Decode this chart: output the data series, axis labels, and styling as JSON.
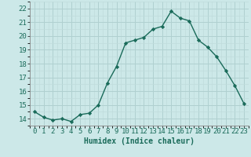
{
  "x": [
    0,
    1,
    2,
    3,
    4,
    5,
    6,
    7,
    8,
    9,
    10,
    11,
    12,
    13,
    14,
    15,
    16,
    17,
    18,
    19,
    20,
    21,
    22,
    23
  ],
  "y": [
    14.5,
    14.1,
    13.9,
    14.0,
    13.8,
    14.3,
    14.4,
    15.0,
    16.6,
    17.8,
    19.5,
    19.7,
    19.9,
    20.5,
    20.7,
    21.8,
    21.3,
    21.1,
    19.7,
    19.2,
    18.5,
    17.5,
    16.4,
    15.1
  ],
  "xlabel": "Humidex (Indice chaleur)",
  "bg_color": "#cce8e8",
  "grid_major_color": "#b0d0d0",
  "grid_minor_color": "#c0dcdc",
  "line_color": "#1a6b5a",
  "marker_color": "#1a6b5a",
  "ylim": [
    13.5,
    22.5
  ],
  "xlim": [
    -0.5,
    23.5
  ],
  "yticks": [
    14,
    15,
    16,
    17,
    18,
    19,
    20,
    21,
    22
  ],
  "xticks": [
    0,
    1,
    2,
    3,
    4,
    5,
    6,
    7,
    8,
    9,
    10,
    11,
    12,
    13,
    14,
    15,
    16,
    17,
    18,
    19,
    20,
    21,
    22,
    23
  ],
  "xlabel_fontsize": 7,
  "tick_fontsize": 6.5
}
